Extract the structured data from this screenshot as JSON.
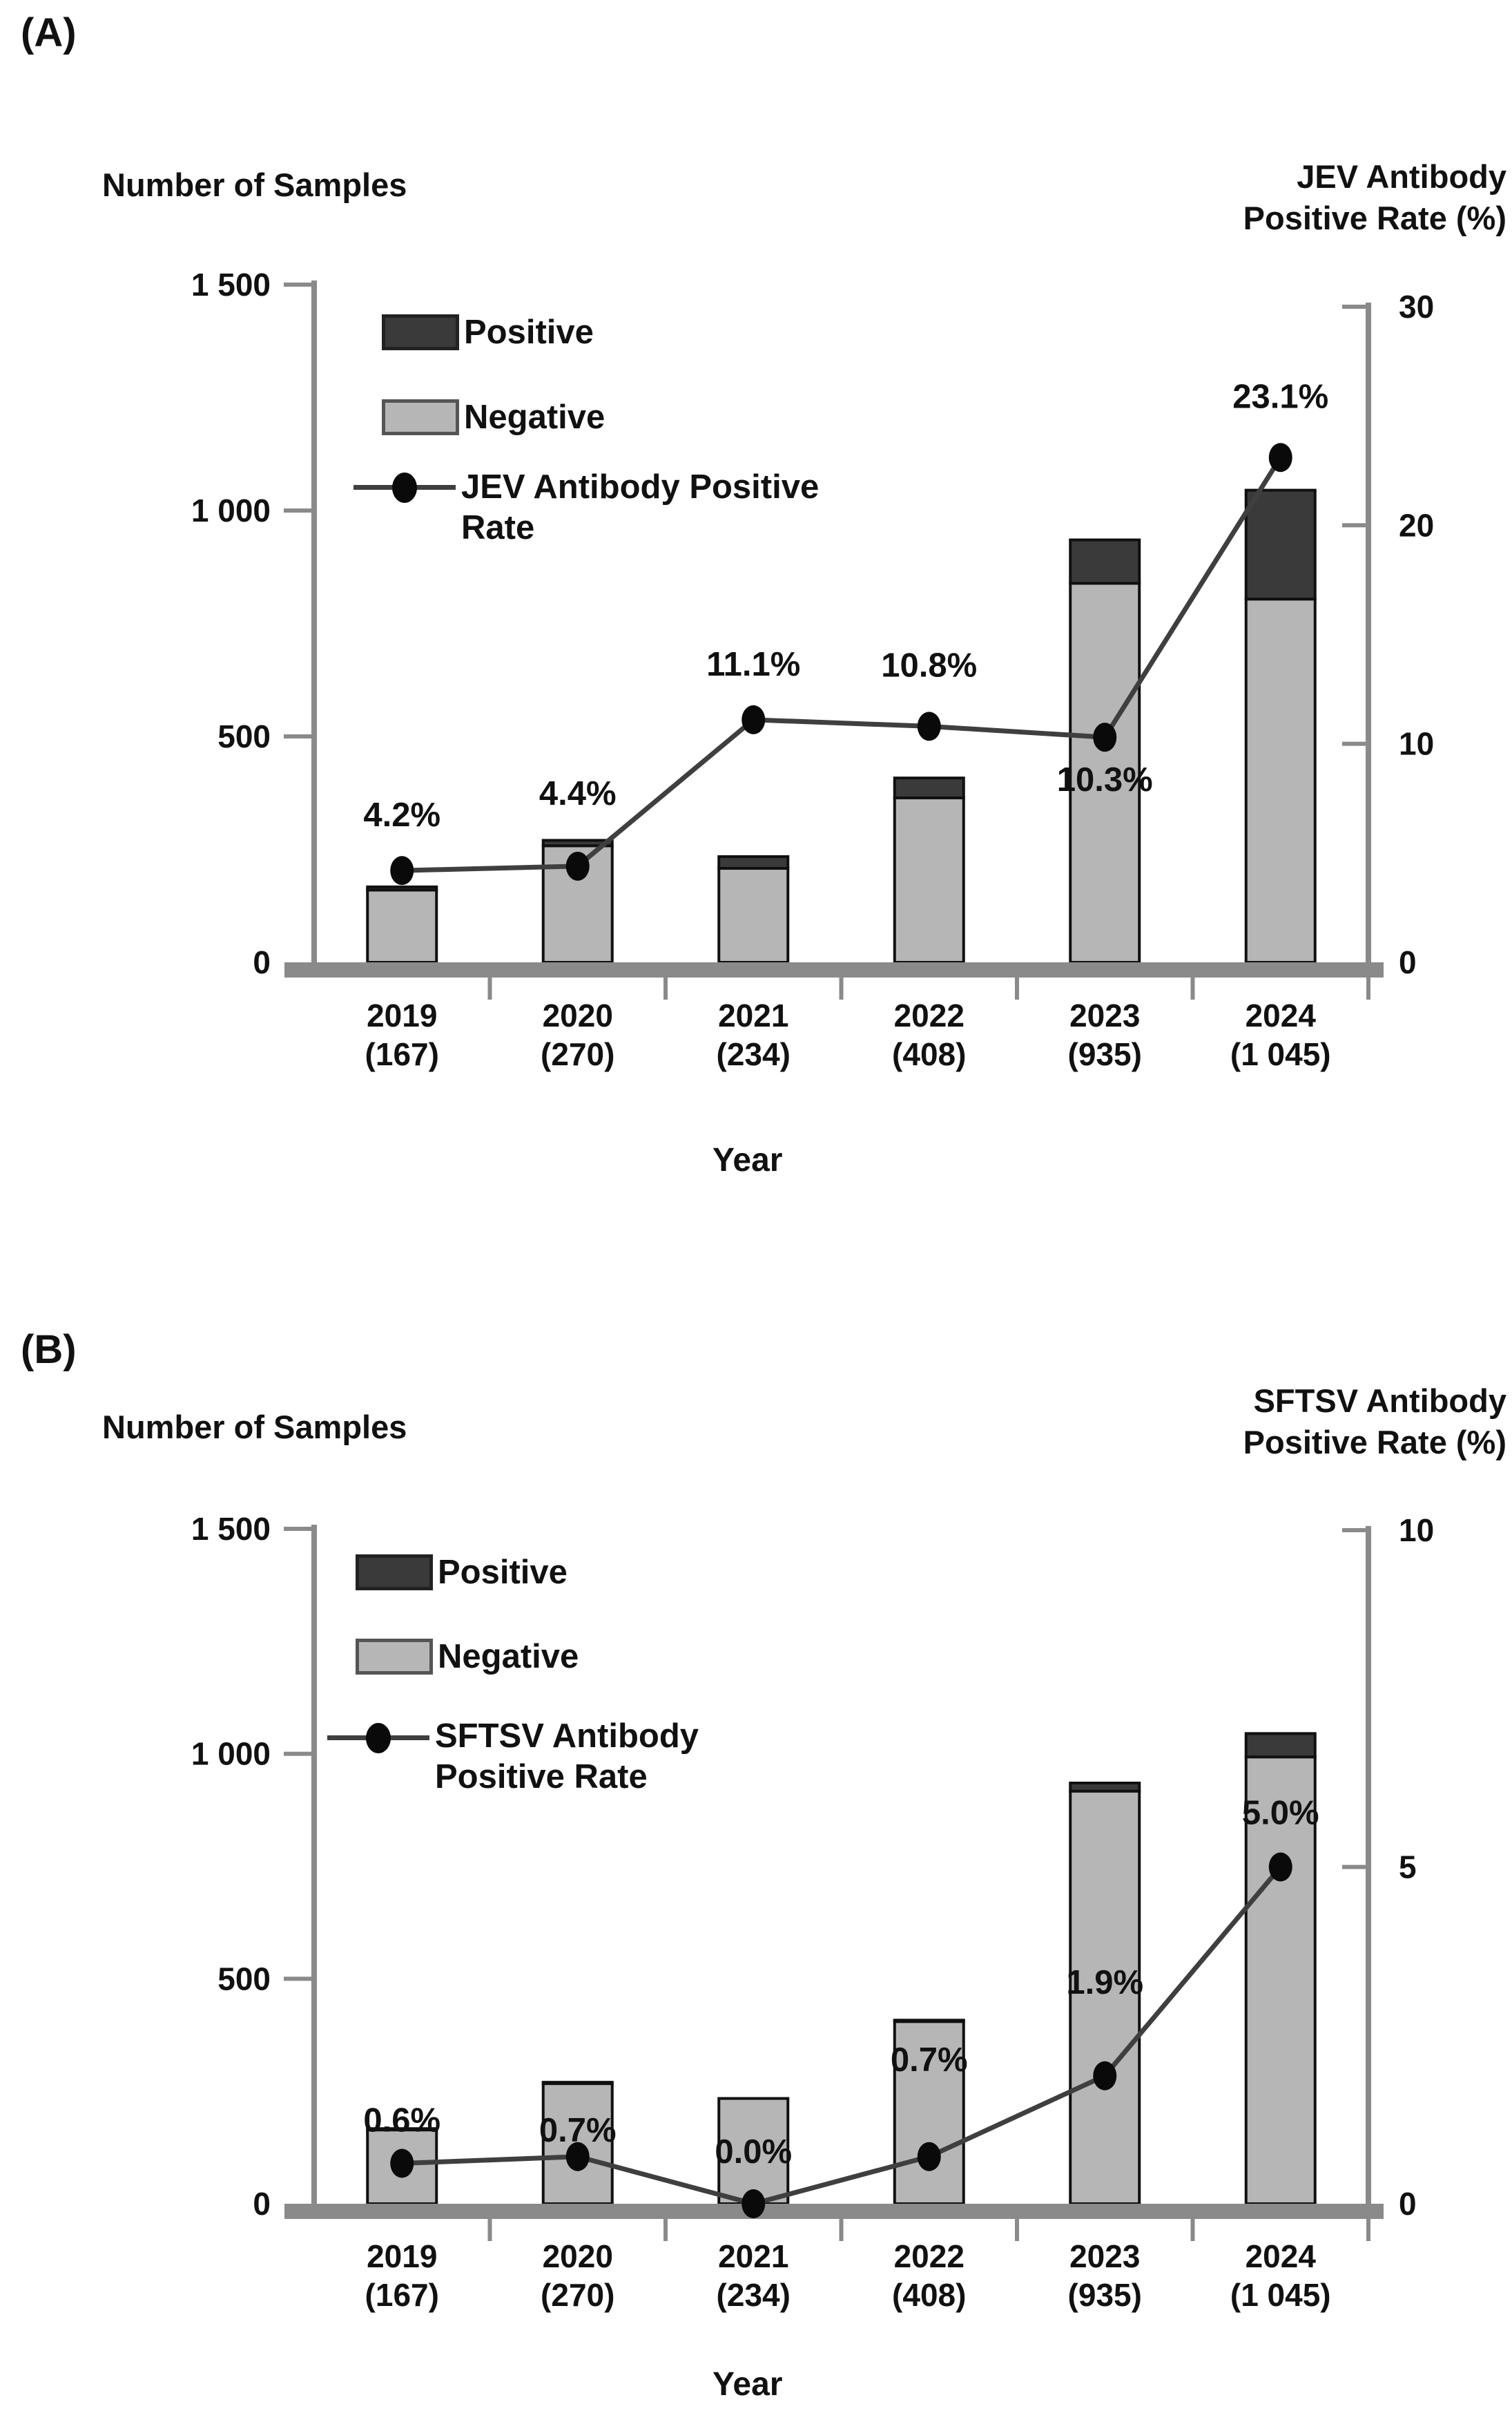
{
  "colors": {
    "positive_bar": "#3a3a3a",
    "negative_bar": "#b6b6b6",
    "line": "#3f3f3f",
    "marker": "#0a0a0a",
    "axis": "#8a8a8a",
    "text": "#111111",
    "background": "#ffffff"
  },
  "chart_data": [
    {
      "type": "bar+line",
      "panel_tag": "(A)",
      "left_axis_title": "Number of Samples",
      "right_axis_title_lines": [
        "JEV Antibody",
        "Positive Rate (%)"
      ],
      "xlabel": "Year",
      "categories": [
        "2019",
        "2020",
        "2021",
        "2022",
        "2023",
        "2024"
      ],
      "category_sublabels": [
        "(167)",
        "(270)",
        "(234)",
        "(408)",
        "(935)",
        "(1 045)"
      ],
      "totals": [
        167,
        270,
        234,
        408,
        935,
        1045
      ],
      "series": [
        {
          "name": "Positive",
          "type": "bar",
          "values": [
            7,
            12,
            26,
            44,
            96,
            241
          ]
        },
        {
          "name": "Negative",
          "type": "bar",
          "values": [
            160,
            258,
            208,
            364,
            839,
            804
          ]
        },
        {
          "name": "JEV Antibody Positive Rate",
          "type": "line",
          "axis": "right",
          "values": [
            4.2,
            4.4,
            11.1,
            10.8,
            10.3,
            23.1
          ],
          "point_labels": [
            "4.2%",
            "4.4%",
            "11.1%",
            "10.8%",
            "10.3%",
            "23.1%"
          ]
        }
      ],
      "ylim": [
        0,
        1500
      ],
      "y2lim": [
        0,
        30
      ],
      "left_ticks": [
        {
          "value": 0,
          "label": "0"
        },
        {
          "value": 500,
          "label": "500"
        },
        {
          "value": 1000,
          "label": "1 000"
        },
        {
          "value": 1500,
          "label": "1 500"
        }
      ],
      "right_ticks": [
        {
          "value": 0,
          "label": "0"
        },
        {
          "value": 10,
          "label": "10"
        },
        {
          "value": 20,
          "label": "20"
        },
        {
          "value": 30,
          "label": "30"
        }
      ],
      "legend": [
        {
          "kind": "bar-positive",
          "lines": [
            "Positive",
            ""
          ]
        },
        {
          "kind": "bar-negative",
          "lines": [
            "Negative",
            ""
          ]
        },
        {
          "kind": "line",
          "lines": [
            "JEV Antibody Positive",
            "Rate"
          ]
        }
      ],
      "label_dy": [
        -80,
        -105,
        -80,
        -88,
        62,
        -88
      ],
      "grid": false,
      "legend_position": "inside-top-left"
    },
    {
      "type": "bar+line",
      "panel_tag": "(B)",
      "left_axis_title": "Number of Samples",
      "right_axis_title_lines": [
        "SFTSV Antibody",
        "Positive Rate (%)"
      ],
      "xlabel": "Year",
      "categories": [
        "2019",
        "2020",
        "2021",
        "2022",
        "2023",
        "2024"
      ],
      "category_sublabels": [
        "(167)",
        "(270)",
        "(234)",
        "(408)",
        "(935)",
        "(1 045)"
      ],
      "totals": [
        167,
        270,
        234,
        408,
        935,
        1045
      ],
      "series": [
        {
          "name": "Positive",
          "type": "bar",
          "values": [
            1,
            2,
            0,
            3,
            18,
            52
          ]
        },
        {
          "name": "Negative",
          "type": "bar",
          "values": [
            166,
            268,
            234,
            405,
            917,
            993
          ]
        },
        {
          "name": "SFTSV Antibody Positive Rate",
          "type": "line",
          "axis": "right",
          "values": [
            0.6,
            0.7,
            0.0,
            0.7,
            1.9,
            5.0
          ],
          "point_labels": [
            "0.6%",
            "0.7%",
            "0.0%",
            "0.7%",
            "1.9%",
            "5.0%"
          ]
        }
      ],
      "ylim": [
        0,
        1500
      ],
      "y2lim": [
        0,
        10
      ],
      "left_ticks": [
        {
          "value": 0,
          "label": "0"
        },
        {
          "value": 500,
          "label": "500"
        },
        {
          "value": 1000,
          "label": "1 000"
        },
        {
          "value": 1500,
          "label": "1 500"
        }
      ],
      "right_ticks": [
        {
          "value": 0,
          "label": "0"
        },
        {
          "value": 5,
          "label": "5"
        },
        {
          "value": 10,
          "label": "10"
        }
      ],
      "legend": [
        {
          "kind": "bar-positive",
          "lines": [
            "Positive",
            ""
          ]
        },
        {
          "kind": "bar-negative",
          "lines": [
            "Negative",
            ""
          ]
        },
        {
          "kind": "line",
          "lines": [
            "SFTSV Antibody",
            "Positive Rate"
          ]
        }
      ],
      "label_dy": [
        -62,
        -38,
        -75,
        -140,
        -135,
        -78
      ],
      "grid": false,
      "legend_position": "inside-top-left"
    }
  ]
}
